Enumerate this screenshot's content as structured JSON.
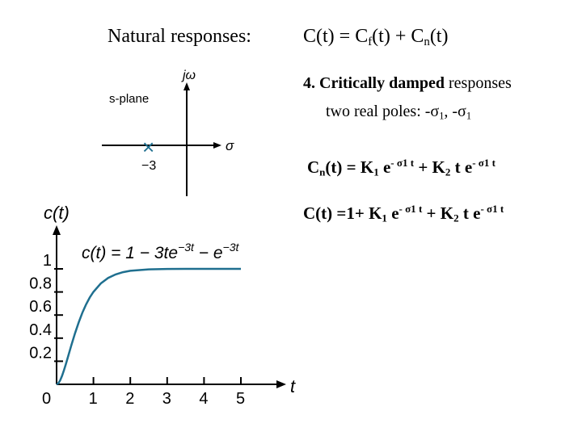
{
  "heading": {
    "left": "Natural responses:",
    "right_base": "C(t) = C",
    "right_sub1": "f",
    "right_mid": "(t) + C",
    "right_sub2": "n",
    "right_tail": "(t)"
  },
  "section": {
    "number_title": "4. Critically damped",
    "title_rest": " responses",
    "poles_text": "two real poles: -σ",
    "poles_sub1": "1",
    "poles_sep": ",  -σ",
    "poles_sub2": "1"
  },
  "equations": {
    "cn": {
      "lhs_base": "C",
      "lhs_sub": "n",
      "lhs_tail": "(t) = K",
      "k1_sub": "1",
      "e1": " e",
      "exp1": "- σ1 t",
      "plus": " + K",
      "k2_sub": "2",
      "te": " t e",
      "exp2": "- σ1 t"
    },
    "c": {
      "lhs": "C(t) =1+ K",
      "k1_sub": "1",
      "e1": " e",
      "exp1": "- σ1 t",
      "plus": " + K",
      "k2_sub": "2",
      "te": " t e",
      "exp2": "- σ1 t"
    }
  },
  "splane": {
    "label": "s-plane",
    "imag_axis_label": "jω",
    "real_axis_label": "σ",
    "pole_label": "−3",
    "pole_marker": "×"
  },
  "plot": {
    "ylabel": "c(t)",
    "xlabel": "t",
    "formula_lhs": "c(t) = 1 − 3te",
    "formula_exp1": "−3t",
    "formula_mid": " − e",
    "formula_exp2": "−3t",
    "colors": {
      "curve": "#1f6f8f"
    }
  },
  "chart_data": {
    "type": "line",
    "x_ticks": [
      "0",
      "1",
      "2",
      "3",
      "4",
      "5"
    ],
    "y_ticks": [
      "0.2",
      "0.4",
      "0.6",
      "0.8",
      "1"
    ],
    "xlim": [
      0,
      5
    ],
    "ylim": [
      0,
      1
    ],
    "series": [
      {
        "x": [
          0,
          0.05,
          0.1,
          0.15,
          0.2,
          0.25,
          0.3,
          0.4,
          0.5,
          0.6,
          0.7,
          0.8,
          0.9,
          1.0,
          1.2,
          1.4,
          1.6,
          1.8,
          2.0,
          2.5,
          3.0,
          3.5,
          4.0,
          4.5,
          5.0
        ],
        "y": [
          0,
          0.01,
          0.037,
          0.074,
          0.122,
          0.173,
          0.228,
          0.337,
          0.442,
          0.537,
          0.62,
          0.692,
          0.752,
          0.801,
          0.874,
          0.922,
          0.952,
          0.971,
          0.983,
          0.996,
          0.999,
          1.0,
          1.0,
          1.0,
          1.0
        ]
      }
    ],
    "grid": false
  }
}
